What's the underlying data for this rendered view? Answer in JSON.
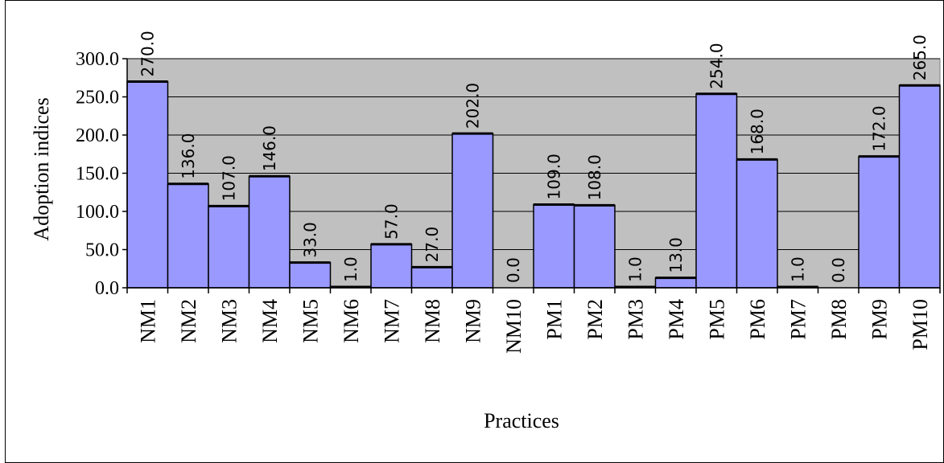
{
  "chart_data": {
    "type": "bar",
    "title": "",
    "xlabel": "Practices",
    "ylabel": "Adoption indices",
    "categories": [
      "NM1",
      "NM2",
      "NM3",
      "NM4",
      "NM5",
      "NM6",
      "NM7",
      "NM8",
      "NM9",
      "NM10",
      "PM1",
      "PM2",
      "PM3",
      "PM4",
      "PM5",
      "PM6",
      "PM7",
      "PM8",
      "PM9",
      "PM10"
    ],
    "values": [
      270.0,
      136.0,
      107.0,
      146.0,
      33.0,
      1.0,
      57.0,
      27.0,
      202.0,
      0.0,
      109.0,
      108.0,
      1.0,
      13.0,
      254.0,
      168.0,
      1.0,
      0.0,
      172.0,
      265.0
    ],
    "data_labels": [
      "270.0",
      "136.0",
      "107.0",
      "146.0",
      "33.0",
      "1.0",
      "57.0",
      "27.0",
      "202.0",
      "0.0",
      "109.0",
      "108.0",
      "1.0",
      "13.0",
      "254.0",
      "168.0",
      "1.0",
      "0.0",
      "172.0",
      "265.0"
    ],
    "yticks": [
      "0.0",
      "50.0",
      "100.0",
      "150.0",
      "200.0",
      "250.0",
      "300.0"
    ],
    "ytick_values": [
      0,
      50,
      100,
      150,
      200,
      250,
      300
    ],
    "ylim": [
      0,
      300
    ],
    "grid": true,
    "legend": "none",
    "colors": {
      "bar_fill": "#9999ff",
      "plot_background": "#c0c0c0",
      "bar_edge": "#000000",
      "gridline": "#000000"
    }
  }
}
